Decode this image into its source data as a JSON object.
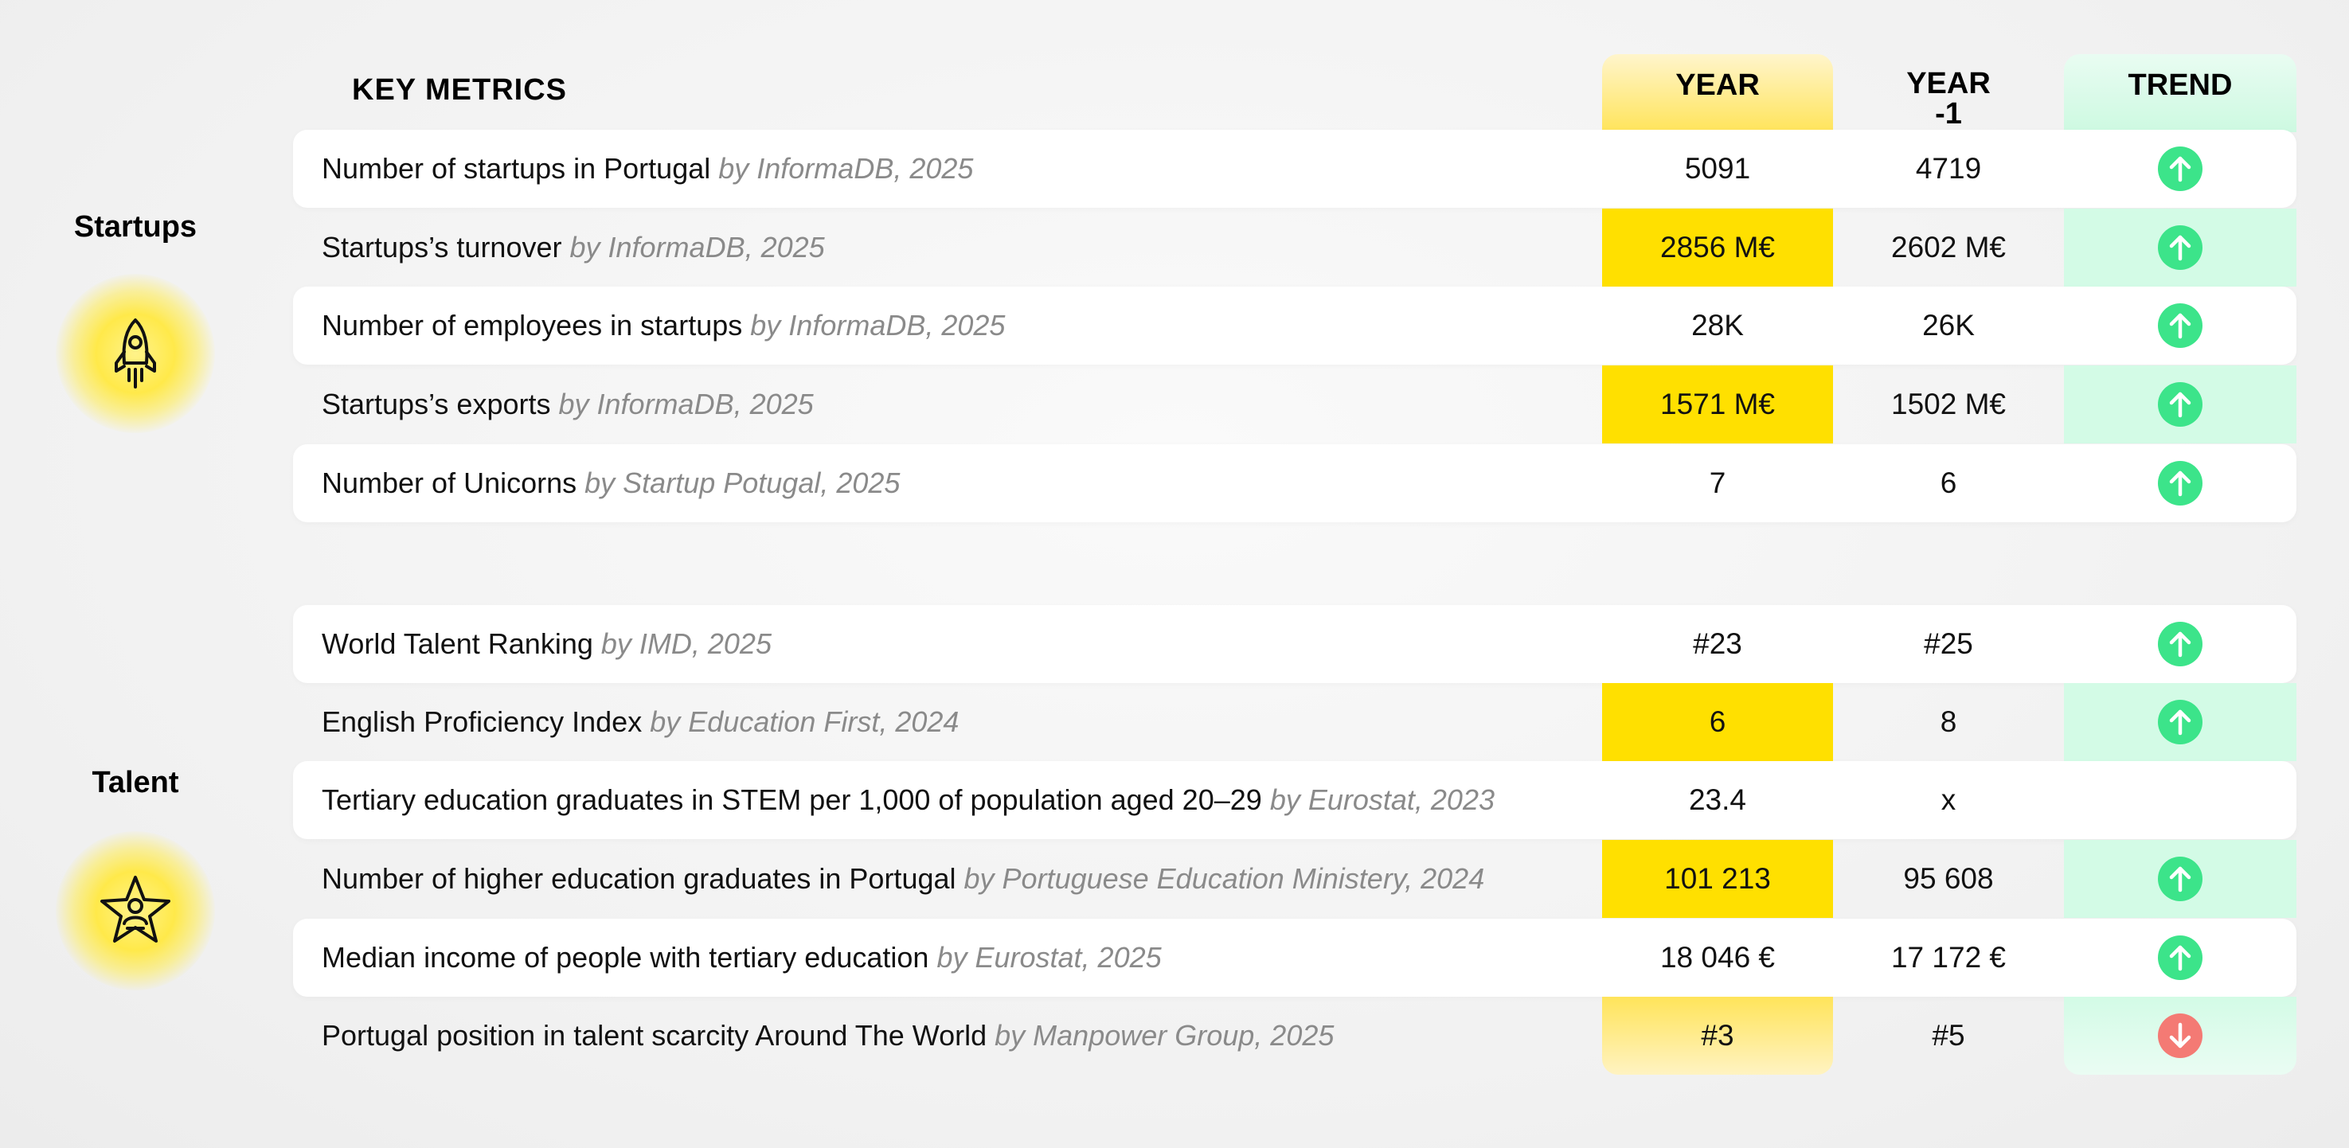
{
  "header": {
    "key_metrics": "KEY METRICS",
    "year": "YEAR",
    "year_minus_1_line1": "YEAR",
    "year_minus_1_line2": "-1",
    "trend": "TREND"
  },
  "sections": {
    "startups": {
      "label": "Startups",
      "icon": "rocket-icon"
    },
    "talent": {
      "label": "Talent",
      "icon": "star-person-icon"
    }
  },
  "rows": [
    {
      "metric": "Number of startups in Portugal",
      "source": "by InformaDB, 2025",
      "year": "5091",
      "year_minus_1": "4719",
      "trend": "up"
    },
    {
      "metric": "Startups’s turnover",
      "source": "by InformaDB, 2025",
      "year": "2856 M€",
      "year_minus_1": "2602 M€",
      "trend": "up"
    },
    {
      "metric": "Number of employees in startups",
      "source": "by InformaDB, 2025",
      "year": "28K",
      "year_minus_1": "26K",
      "trend": "up"
    },
    {
      "metric": "Startups’s exports",
      "source": "by InformaDB, 2025",
      "year": "1571 M€",
      "year_minus_1": "1502 M€",
      "trend": "up"
    },
    {
      "metric": "Number of Unicorns",
      "source": "by Startup Potugal, 2025",
      "year": "7",
      "year_minus_1": "6",
      "trend": "up"
    },
    {
      "metric": "World Talent Ranking",
      "source": "by IMD, 2025",
      "year": "#23",
      "year_minus_1": "#25",
      "trend": "up"
    },
    {
      "metric": "English Proficiency Index",
      "source": "by Education First, 2024",
      "year": "6",
      "year_minus_1": "8",
      "trend": "up"
    },
    {
      "metric": "Tertiary education graduates in STEM per 1,000 of population aged 20–29",
      "source": "by Eurostat, 2023",
      "year": "23.4",
      "year_minus_1": "x",
      "trend": ""
    },
    {
      "metric": "Number of higher education graduates in Portugal",
      "source": "by Portuguese Education Ministery, 2024",
      "year": "101 213",
      "year_minus_1": "95 608",
      "trend": "up"
    },
    {
      "metric": "Median income of people with tertiary education",
      "source": "by Eurostat, 2025",
      "year": "18 046 €",
      "year_minus_1": "17 172 €",
      "trend": "up"
    },
    {
      "metric": "Portugal position in talent scarcity Around The World",
      "source": "by Manpower Group, 2025",
      "year": "#3",
      "year_minus_1": "#5",
      "trend": "down"
    }
  ],
  "colors": {
    "year_highlight": "#ffe000",
    "trend_highlight": "#d3fbe6",
    "trend_up": "#3ce48a",
    "trend_down": "#f47a74"
  }
}
